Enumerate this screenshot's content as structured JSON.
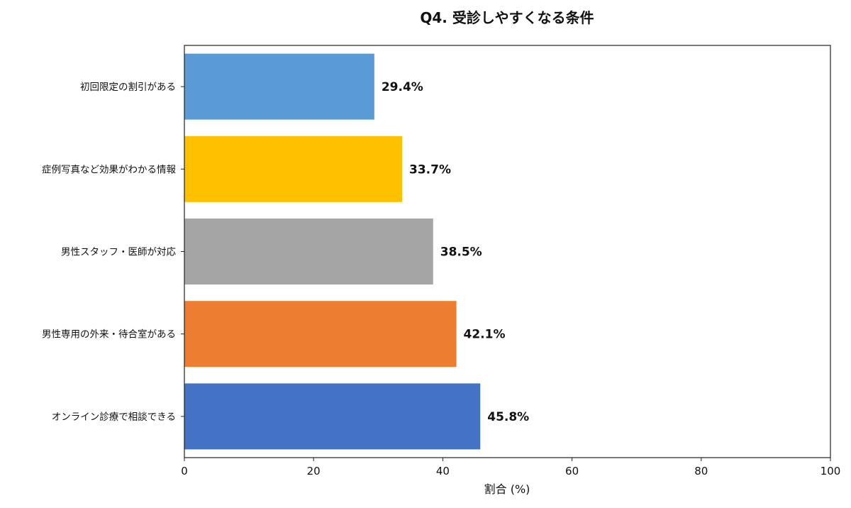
{
  "chart_data": {
    "type": "bar",
    "orientation": "horizontal",
    "title": "Q4. 受診しやすくなる条件",
    "xlabel": "割合 (%)",
    "ylabel": "",
    "xlim": [
      0,
      100
    ],
    "xticks": [
      0,
      20,
      40,
      60,
      80,
      100
    ],
    "grid": false,
    "categories": [
      "初回限定の割引がある",
      "症例写真など効果がわかる情報",
      "男性スタッフ・医師が対応",
      "男性専用の外来・待合室がある",
      "オンライン診療で相談できる"
    ],
    "values": [
      29.4,
      33.7,
      38.5,
      42.1,
      45.8
    ],
    "data_labels": [
      "29.4%",
      "33.7%",
      "38.5%",
      "42.1%",
      "45.8%"
    ],
    "colors": [
      "#5b9bd5",
      "#ffc000",
      "#a5a5a5",
      "#ed7d31",
      "#4472c4"
    ]
  }
}
